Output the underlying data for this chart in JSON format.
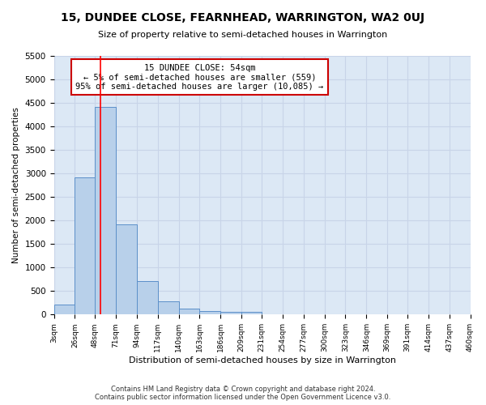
{
  "title": "15, DUNDEE CLOSE, FEARNHEAD, WARRINGTON, WA2 0UJ",
  "subtitle": "Size of property relative to semi-detached houses in Warrington",
  "xlabel": "Distribution of semi-detached houses by size in Warrington",
  "ylabel": "Number of semi-detached properties",
  "bar_values": [
    220,
    2920,
    4420,
    1920,
    710,
    285,
    130,
    80,
    50,
    50,
    0,
    0,
    0,
    0,
    0,
    0,
    0,
    0,
    0,
    0
  ],
  "bin_edges": [
    3,
    26,
    48,
    71,
    94,
    117,
    140,
    163,
    186,
    209,
    231,
    254,
    277,
    300,
    323,
    346,
    369,
    391,
    414,
    437,
    460
  ],
  "bin_labels": [
    "3sqm",
    "26sqm",
    "48sqm",
    "71sqm",
    "94sqm",
    "117sqm",
    "140sqm",
    "163sqm",
    "186sqm",
    "209sqm",
    "231sqm",
    "254sqm",
    "277sqm",
    "300sqm",
    "323sqm",
    "346sqm",
    "369sqm",
    "391sqm",
    "414sqm",
    "437sqm",
    "460sqm"
  ],
  "bar_color": "#b8d0ea",
  "bar_edge_color": "#5b8fc9",
  "grid_color": "#c8d4e8",
  "background_color": "#dce8f5",
  "annotation_text": "15 DUNDEE CLOSE: 54sqm\n← 5% of semi-detached houses are smaller (559)\n95% of semi-detached houses are larger (10,085) →",
  "property_size": 54,
  "ylim": [
    0,
    5500
  ],
  "yticks": [
    0,
    500,
    1000,
    1500,
    2000,
    2500,
    3000,
    3500,
    4000,
    4500,
    5000,
    5500
  ],
  "footer": "Contains HM Land Registry data © Crown copyright and database right 2024.\nContains public sector information licensed under the Open Government Licence v3.0.",
  "annotation_box_color": "#ffffff",
  "annotation_box_edge": "#cc0000"
}
